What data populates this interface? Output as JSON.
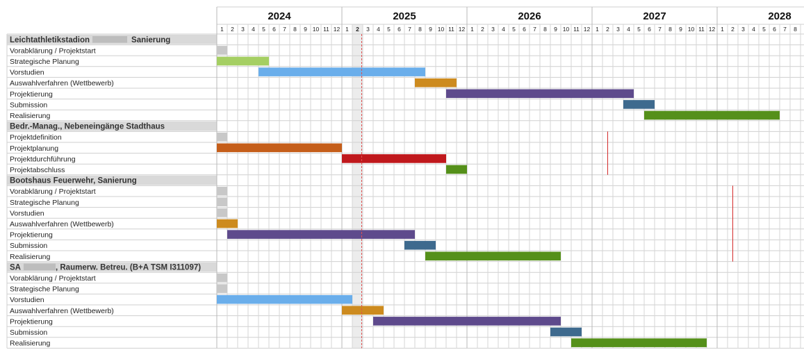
{
  "chart_data": {
    "type": "gantt",
    "years": [
      "2024",
      "2025",
      "2026",
      "2027",
      "2028"
    ],
    "current_month": {
      "year": 2025,
      "month": 2
    },
    "current_month_label": "2",
    "colors": {
      "grey": "#c8c8c8",
      "green_light": "#a5cf63",
      "blue_light": "#6aaeeb",
      "orange": "#cd8b1f",
      "purple": "#5e4a8c",
      "slate": "#3e6a8e",
      "green_dark": "#55901a",
      "orange_dark": "#c55e1a",
      "red": "#c0181c"
    },
    "groups": [
      {
        "title_left": "Leichtathletikstadion",
        "title_right": "Sanierung",
        "redacted": true,
        "marker": null,
        "tasks": [
          {
            "label": "Vorabklärung / Projektstart",
            "start": "2024-01",
            "end": "2024-01",
            "color": "grey"
          },
          {
            "label": "Strategische Planung",
            "start": "2024-01",
            "end": "2024-05",
            "color": "green_light"
          },
          {
            "label": "Vorstudien",
            "start": "2024-05",
            "end": "2025-08",
            "color": "blue_light"
          },
          {
            "label": "Auswahlverfahren (Wettbewerb)",
            "start": "2025-08",
            "end": "2025-11",
            "color": "orange"
          },
          {
            "label": "Projektierung",
            "start": "2025-11",
            "end": "2027-04",
            "color": "purple"
          },
          {
            "label": "Submission",
            "start": "2027-04",
            "end": "2027-06",
            "color": "slate"
          },
          {
            "label": "Realisierung",
            "start": "2027-06",
            "end": "2028-06",
            "color": "green_dark"
          }
        ]
      },
      {
        "title_left": "Bedr.-Manag., Nebeneingänge Stadthaus",
        "title_right": "",
        "redacted": false,
        "marker": "2027-02",
        "tasks": [
          {
            "label": "Projektdefinition",
            "start": "2024-01",
            "end": "2024-01",
            "color": "grey"
          },
          {
            "label": "Projektplanung",
            "start": "2024-01",
            "end": "2024-12",
            "color": "orange_dark"
          },
          {
            "label": "Projektdurchführung",
            "start": "2025-01",
            "end": "2025-10",
            "color": "red"
          },
          {
            "label": "Projektabschluss",
            "start": "2025-11",
            "end": "2025-12",
            "color": "green_dark"
          }
        ]
      },
      {
        "title_left": "Bootshaus Feuerwehr, Sanierung",
        "title_right": "",
        "redacted": false,
        "marker": "2028-02",
        "tasks": [
          {
            "label": "Vorabklärung / Projektstart",
            "start": "2024-01",
            "end": "2024-01",
            "color": "grey"
          },
          {
            "label": "Strategische Planung",
            "start": "2024-01",
            "end": "2024-01",
            "color": "grey"
          },
          {
            "label": "Vorstudien",
            "start": "2024-01",
            "end": "2024-01",
            "color": "grey"
          },
          {
            "label": "Auswahlverfahren (Wettbewerb)",
            "start": "2024-01",
            "end": "2024-02",
            "color": "orange"
          },
          {
            "label": "Projektierung",
            "start": "2024-02",
            "end": "2025-07",
            "color": "purple"
          },
          {
            "label": "Submission",
            "start": "2025-07",
            "end": "2025-09",
            "color": "slate"
          },
          {
            "label": "Realisierung",
            "start": "2025-09",
            "end": "2026-09",
            "color": "green_dark"
          }
        ]
      },
      {
        "title_left": "SA",
        "title_right": ", Raumerw. Betreu. (B+A TSM I311097)",
        "redacted": true,
        "marker": null,
        "tasks": [
          {
            "label": "Vorabklärung / Projektstart",
            "start": "2024-01",
            "end": "2024-01",
            "color": "grey"
          },
          {
            "label": "Strategische Planung",
            "start": "2024-01",
            "end": "2024-01",
            "color": "grey"
          },
          {
            "label": "Vorstudien",
            "start": "2024-01",
            "end": "2025-01",
            "color": "blue_light"
          },
          {
            "label": "Auswahlverfahren (Wettbewerb)",
            "start": "2025-01",
            "end": "2025-04",
            "color": "orange"
          },
          {
            "label": "Projektierung",
            "start": "2025-04",
            "end": "2026-09",
            "color": "purple"
          },
          {
            "label": "Submission",
            "start": "2026-09",
            "end": "2026-11",
            "color": "slate"
          },
          {
            "label": "Realisierung",
            "start": "2026-11",
            "end": "2027-11",
            "color": "green_dark"
          }
        ]
      }
    ]
  }
}
